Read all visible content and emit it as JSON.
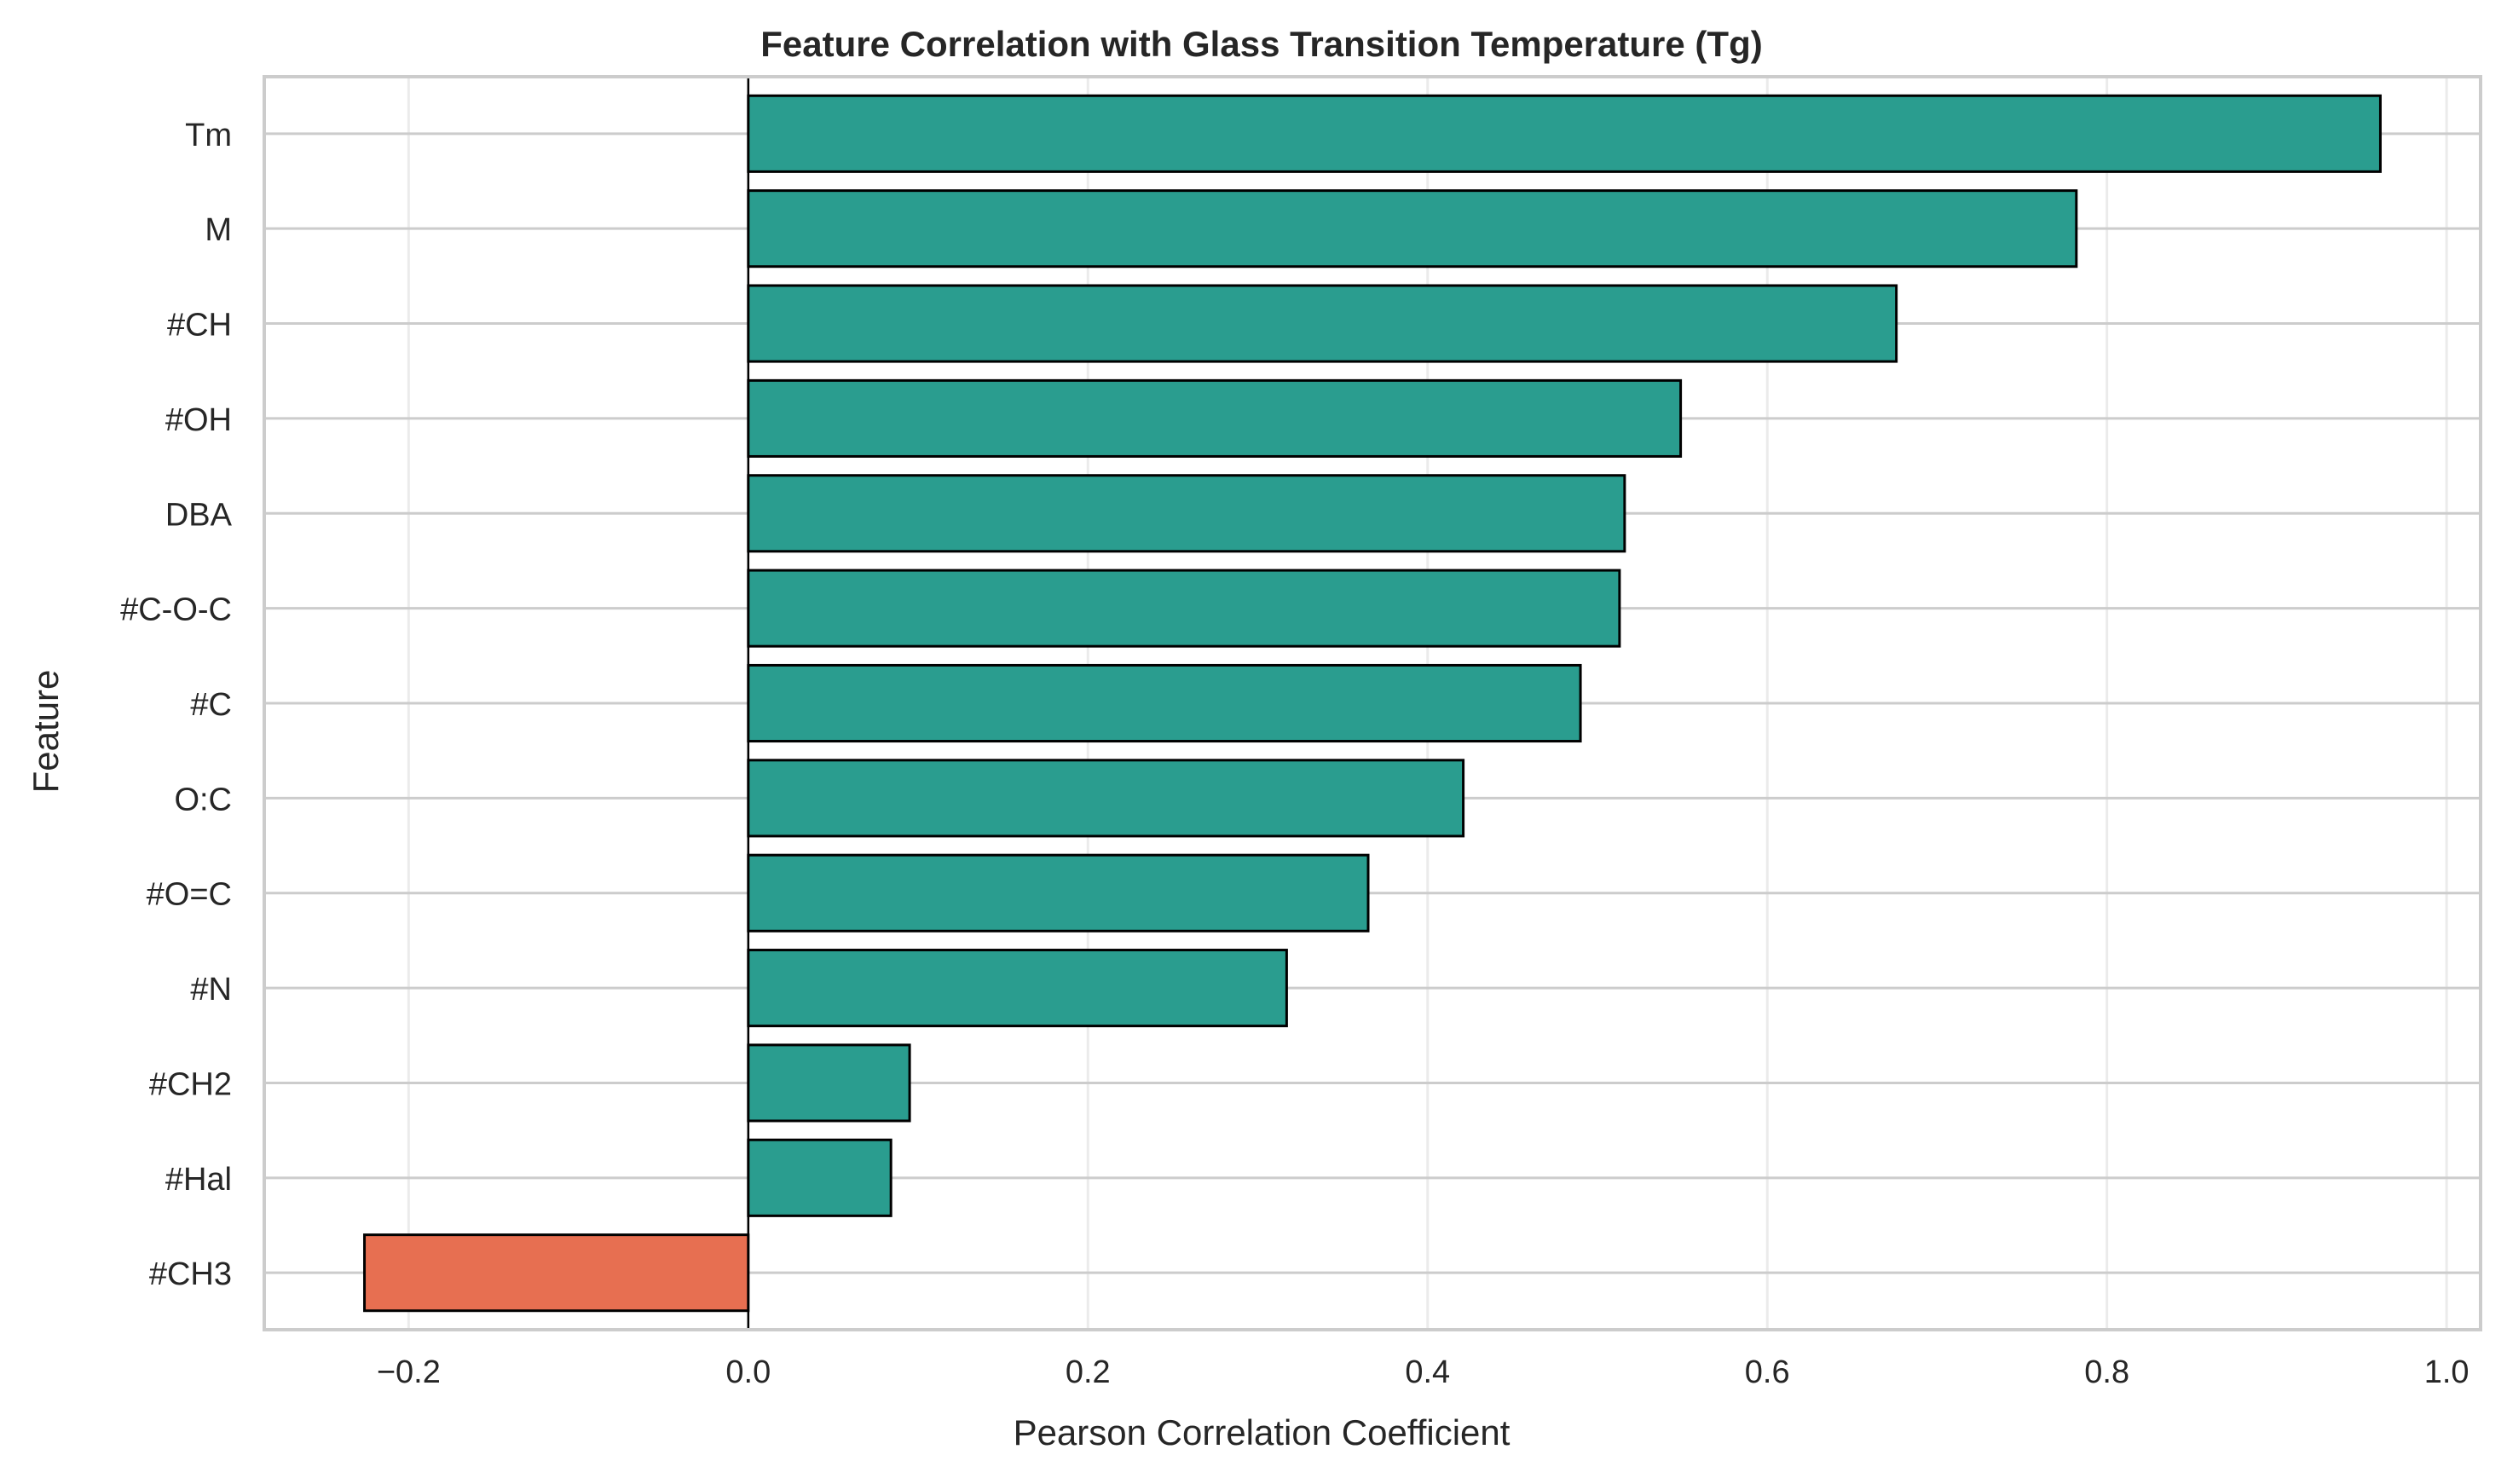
{
  "chart_data": {
    "type": "bar",
    "orientation": "horizontal",
    "title": "Feature Correlation with Glass Transition Temperature (Tg)",
    "xlabel": "Pearson Correlation Coefficient",
    "ylabel": "Feature",
    "xlim": [
      -0.285,
      1.02
    ],
    "xticks": [
      -0.2,
      0.0,
      0.2,
      0.4,
      0.6,
      0.8,
      1.0
    ],
    "xtick_labels": [
      "−0.2",
      "0.0",
      "0.2",
      "0.4",
      "0.6",
      "0.8",
      "1.0"
    ],
    "grid": true,
    "categories": [
      "Tm",
      "M",
      "#CH",
      "#OH",
      "DBA",
      "#C-O-C",
      "#C",
      "O:C",
      "#O=C",
      "#N",
      "#CH2",
      "#Hal",
      "#CH3"
    ],
    "values": [
      0.961,
      0.782,
      0.676,
      0.549,
      0.516,
      0.513,
      0.49,
      0.421,
      0.365,
      0.317,
      0.095,
      0.084,
      -0.226
    ],
    "colors": {
      "positive": "#2a9d8f",
      "negative": "#e76f51",
      "edge": "#000000",
      "grid": "#ebebeb",
      "frame": "#cccccc",
      "zero_line": "#000000"
    }
  }
}
